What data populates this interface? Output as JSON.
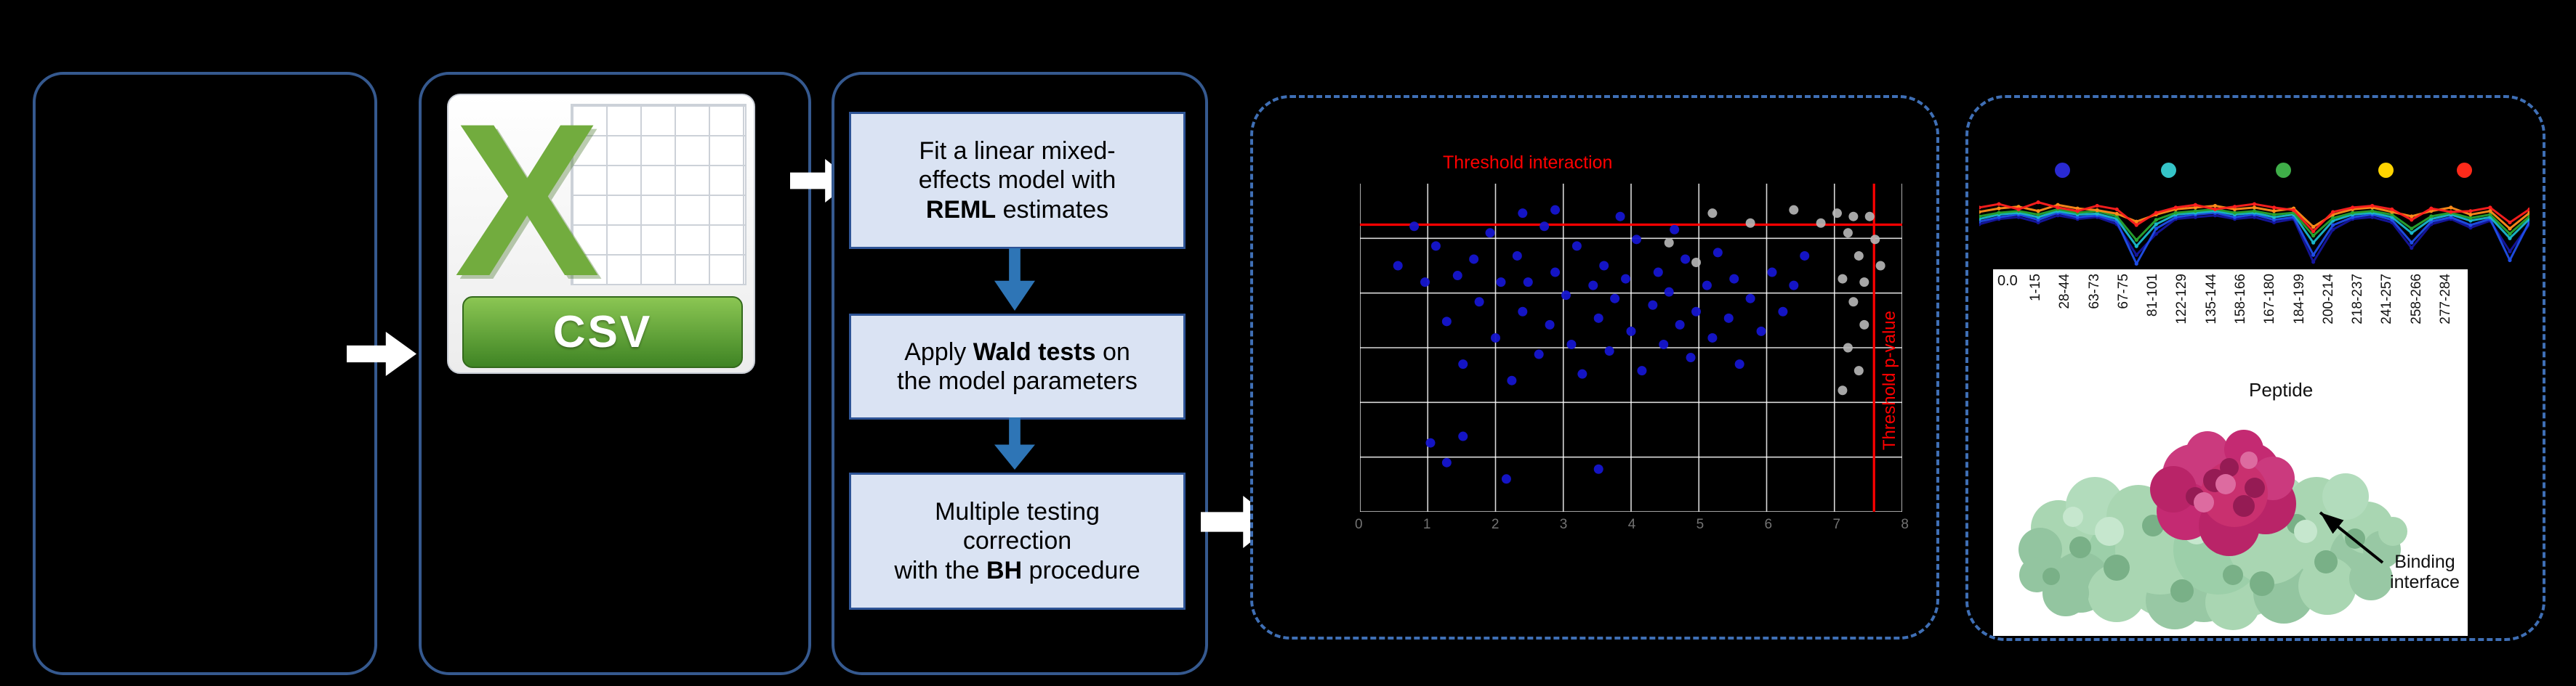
{
  "figure": {
    "csv": {
      "logo_letter": "X",
      "banner": "CSV"
    },
    "steps": [
      {
        "lines": [
          [
            {
              "text": "Fit a linear mixed-"
            }
          ],
          [
            {
              "text": "effects model with"
            }
          ],
          [
            {
              "text": "REML",
              "bold": true
            },
            {
              "text": " estimates"
            }
          ]
        ]
      },
      {
        "lines": [
          [
            {
              "text": "Apply "
            },
            {
              "text": "Wald tests",
              "bold": true
            },
            {
              "text": " on"
            }
          ],
          [
            {
              "text": "the model parameters"
            }
          ]
        ]
      },
      {
        "lines": [
          [
            {
              "text": "Multiple testing"
            }
          ],
          [
            {
              "text": "correction"
            }
          ],
          [
            {
              "text": "with the "
            },
            {
              "text": "BH",
              "bold": true
            },
            {
              "text": " procedure"
            }
          ]
        ]
      }
    ],
    "scatter": {
      "title": "Threshold interaction",
      "vline_label": "Threshold p-value",
      "threshold_color": "#ff0000",
      "h_threshold_pct": 12.5,
      "v_threshold_pct": 94.8,
      "grid_v_lines": 9,
      "grid_h_lines": 6,
      "sig_color": "#1515cf",
      "nonsig_color": "#b8b8b8",
      "x_ticks": [
        "0",
        "1",
        "2",
        "3",
        "4",
        "5",
        "6",
        "7",
        "8"
      ],
      "sig_points": [
        [
          7,
          25
        ],
        [
          10,
          13
        ],
        [
          12,
          30
        ],
        [
          14,
          19
        ],
        [
          16,
          42
        ],
        [
          18,
          28
        ],
        [
          19,
          55
        ],
        [
          21,
          23
        ],
        [
          22,
          36
        ],
        [
          24,
          15
        ],
        [
          25,
          47
        ],
        [
          26,
          30
        ],
        [
          28,
          60
        ],
        [
          29,
          22
        ],
        [
          30,
          39
        ],
        [
          31,
          30
        ],
        [
          33,
          52
        ],
        [
          34,
          13
        ],
        [
          35,
          43
        ],
        [
          36,
          27
        ],
        [
          38,
          34
        ],
        [
          39,
          49
        ],
        [
          40,
          19
        ],
        [
          41,
          58
        ],
        [
          43,
          31
        ],
        [
          44,
          41
        ],
        [
          45,
          25
        ],
        [
          46,
          51
        ],
        [
          47,
          35
        ],
        [
          49,
          29
        ],
        [
          50,
          45
        ],
        [
          51,
          17
        ],
        [
          52,
          57
        ],
        [
          54,
          37
        ],
        [
          55,
          27
        ],
        [
          56,
          49
        ],
        [
          57,
          33
        ],
        [
          59,
          43
        ],
        [
          60,
          23
        ],
        [
          61,
          53
        ],
        [
          62,
          39
        ],
        [
          64,
          31
        ],
        [
          65,
          47
        ],
        [
          66,
          21
        ],
        [
          68,
          41
        ],
        [
          69,
          29
        ],
        [
          70,
          55
        ],
        [
          72,
          35
        ],
        [
          74,
          45
        ],
        [
          76,
          27
        ],
        [
          78,
          39
        ],
        [
          80,
          31
        ],
        [
          82,
          22
        ],
        [
          58,
          14
        ],
        [
          48,
          10
        ],
        [
          30,
          9
        ],
        [
          36,
          8
        ],
        [
          13,
          79
        ],
        [
          16,
          85
        ],
        [
          19,
          77
        ],
        [
          27,
          90
        ],
        [
          44,
          87
        ]
      ],
      "nonsig_points": [
        [
          88,
          9
        ],
        [
          90,
          15
        ],
        [
          92,
          22
        ],
        [
          89,
          29
        ],
        [
          91,
          36
        ],
        [
          93,
          43
        ],
        [
          90,
          50
        ],
        [
          92,
          57
        ],
        [
          89,
          63
        ],
        [
          91,
          10
        ],
        [
          93,
          30
        ],
        [
          85,
          12
        ],
        [
          80,
          8
        ],
        [
          72,
          12
        ],
        [
          65,
          9
        ],
        [
          57,
          18
        ],
        [
          62,
          24
        ],
        [
          94,
          10
        ],
        [
          95,
          17
        ],
        [
          96,
          25
        ]
      ]
    },
    "profile": {
      "y_tick": "0.0",
      "x_title": "Peptide",
      "x_labels": [
        "1-15",
        "28-44",
        "63-73",
        "67-75",
        "81-101",
        "122-129",
        "135-144",
        "158-166",
        "167-180",
        "184-199",
        "200-214",
        "218-237",
        "241-257",
        "258-266",
        "277-284"
      ],
      "legend_colors": [
        "#2a2ad2",
        "#35c4c8",
        "#3fae49",
        "#ffd400",
        "#ff2a1a"
      ],
      "series": [
        {
          "name": "navy",
          "color": "#15159e",
          "values": [
            47,
            41,
            39,
            45,
            37,
            41,
            39,
            47,
            82,
            58,
            41,
            39,
            37,
            41,
            39,
            45,
            41,
            90,
            53,
            41,
            39,
            45,
            74,
            47,
            41,
            51,
            43,
            78,
            47
          ]
        },
        {
          "name": "blue",
          "color": "#1f4ee8",
          "values": [
            44,
            39,
            36,
            42,
            34,
            39,
            37,
            44,
            92,
            52,
            39,
            36,
            34,
            39,
            36,
            42,
            39,
            82,
            48,
            39,
            36,
            42,
            68,
            44,
            39,
            48,
            41,
            88,
            44
          ]
        },
        {
          "name": "cyan",
          "color": "#1ab8cc",
          "values": [
            41,
            36,
            34,
            39,
            32,
            36,
            35,
            41,
            72,
            47,
            36,
            34,
            32,
            36,
            34,
            39,
            36,
            68,
            43,
            36,
            34,
            39,
            57,
            41,
            36,
            43,
            39,
            63,
            41
          ]
        },
        {
          "name": "green",
          "color": "#28a42e",
          "values": [
            38,
            34,
            32,
            36,
            30,
            34,
            32,
            38,
            65,
            42,
            34,
            32,
            30,
            34,
            32,
            36,
            34,
            60,
            40,
            34,
            32,
            36,
            52,
            38,
            34,
            40,
            36,
            58,
            38
          ]
        },
        {
          "name": "orange",
          "color": "#ff8c1a",
          "values": [
            33,
            29,
            27,
            32,
            25,
            29,
            31,
            35,
            44,
            36,
            30,
            28,
            26,
            30,
            28,
            32,
            29,
            50,
            36,
            30,
            28,
            33,
            38,
            32,
            28,
            36,
            32,
            52,
            34
          ]
        },
        {
          "name": "red",
          "color": "#ff1f1f",
          "values": [
            28,
            24,
            30,
            22,
            28,
            32,
            26,
            30,
            48,
            34,
            28,
            25,
            30,
            27,
            24,
            28,
            31,
            55,
            33,
            28,
            26,
            30,
            42,
            29,
            33,
            32,
            28,
            45,
            30
          ]
        }
      ]
    },
    "protein": {
      "caption": "Binding interface"
    }
  }
}
